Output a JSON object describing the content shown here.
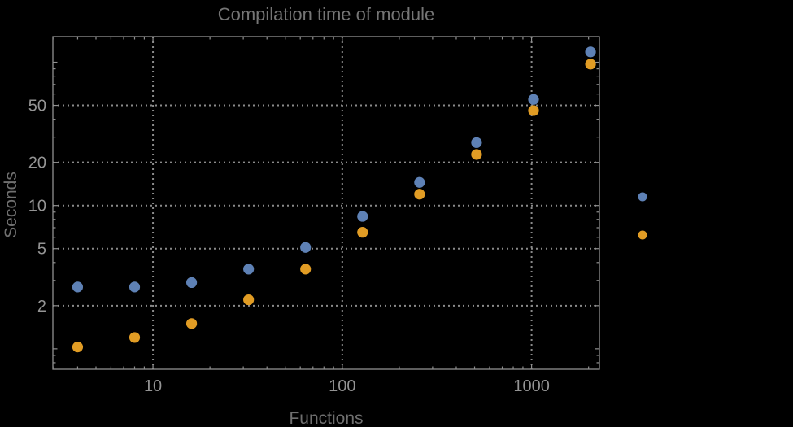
{
  "chart_data": {
    "type": "scatter",
    "title": "Compilation time of module",
    "xlabel": "Functions",
    "ylabel": "Seconds",
    "x_scale": "log",
    "y_scale": "log",
    "xlim": [
      2.96,
      2282
    ],
    "ylim": [
      0.72,
      151
    ],
    "x_tick_labels": [
      "10",
      "100",
      "1000"
    ],
    "x_tick_values": [
      10,
      100,
      1000
    ],
    "y_tick_labels": [
      "2",
      "5",
      "10",
      "20",
      "50"
    ],
    "y_tick_values": [
      2,
      5,
      10,
      20,
      50
    ],
    "grid": "dotted lines at labeled ticks, on",
    "legend_position": "outside-right, marker dots only (labels not visible)",
    "series": [
      {
        "name": "blue-series",
        "color": "#5e81b5",
        "x": [
          4,
          8,
          16,
          32,
          64,
          128,
          256,
          512,
          1024,
          2048
        ],
        "y": [
          2.7,
          2.7,
          2.9,
          3.6,
          5.1,
          8.4,
          14.5,
          27.5,
          55,
          118
        ]
      },
      {
        "name": "orange-series",
        "color": "#e19c24",
        "x": [
          4,
          8,
          16,
          32,
          64,
          128,
          256,
          512,
          1024,
          2048
        ],
        "y": [
          1.03,
          1.2,
          1.5,
          2.2,
          3.6,
          6.5,
          12,
          22.7,
          46,
          97
        ]
      }
    ]
  },
  "colors": {
    "background": "#000000",
    "frame": "#909090",
    "gridline": "#8a8a8a",
    "tick_label": "#949494",
    "title_text": "#757575",
    "axis_label_text": "#6f6f6f",
    "series_blue": "#5e81b5",
    "series_orange": "#e19c24"
  }
}
